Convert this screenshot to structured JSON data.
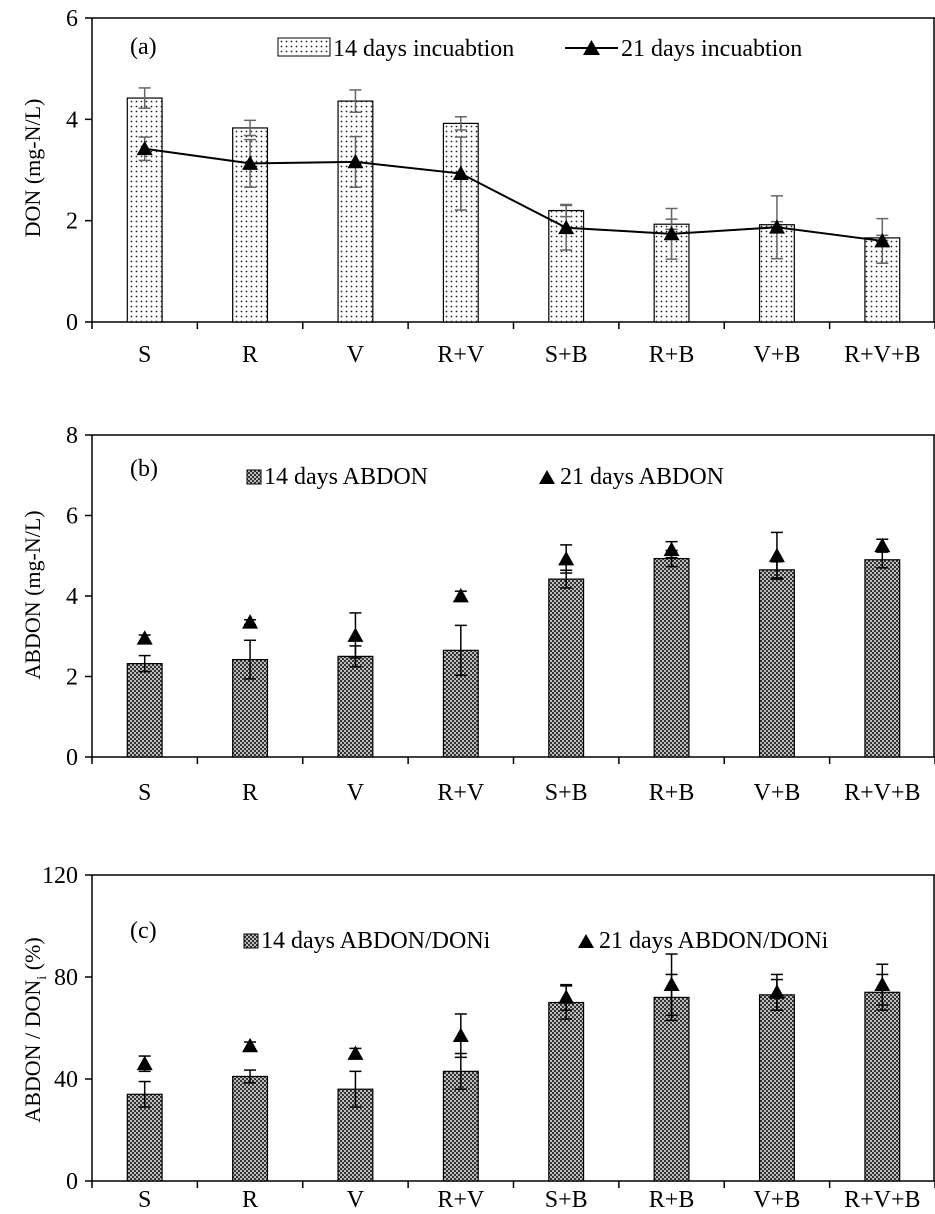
{
  "chart_data": [
    {
      "type": "bar",
      "panel_label": "(a)",
      "ylabel": "DON (mg-N/L)",
      "ylim": [
        0,
        6
      ],
      "yticks": [
        0,
        2,
        4,
        6
      ],
      "grid": false,
      "legend_position": "top",
      "categories": [
        "S",
        "R",
        "V",
        "R+V",
        "S+B",
        "R+B",
        "V+B",
        "R+V+B"
      ],
      "bar_pattern": "dots",
      "series": [
        {
          "name": "14 days incuabtion",
          "kind": "bar",
          "values": [
            4.42,
            3.83,
            4.36,
            3.92,
            2.2,
            1.93,
            1.92,
            1.66
          ],
          "errors": [
            0.2,
            0.15,
            0.22,
            0.13,
            0.12,
            0.1,
            0.06,
            0.05
          ]
        },
        {
          "name": "21 days incuabtion",
          "kind": "line",
          "values": [
            3.42,
            3.13,
            3.16,
            2.93,
            1.86,
            1.74,
            1.87,
            1.6
          ],
          "errors": [
            0.23,
            0.47,
            0.5,
            0.72,
            0.44,
            0.5,
            0.62,
            0.44
          ]
        }
      ]
    },
    {
      "type": "bar",
      "panel_label": "(b)",
      "ylabel": "ABDON (mg-N/L)",
      "ylim": [
        0,
        8
      ],
      "yticks": [
        0,
        2,
        4,
        6,
        8
      ],
      "grid": false,
      "legend_position": "top",
      "categories": [
        "S",
        "R",
        "V",
        "R+V",
        "S+B",
        "R+B",
        "V+B",
        "R+V+B"
      ],
      "bar_pattern": "checker",
      "series": [
        {
          "name": "14 days ABDON",
          "kind": "bar",
          "values": [
            2.32,
            2.42,
            2.5,
            2.65,
            4.42,
            4.93,
            4.65,
            4.9
          ],
          "errors": [
            0.2,
            0.48,
            0.26,
            0.62,
            0.22,
            0.2,
            0.2,
            0.2
          ]
        },
        {
          "name": "21 days ABDON",
          "kind": "marker",
          "values": [
            2.95,
            3.35,
            3.02,
            4.0,
            4.92,
            5.15,
            5.0,
            5.25
          ],
          "errors": [
            0.08,
            0.06,
            0.56,
            0.12,
            0.35,
            0.2,
            0.58,
            0.16
          ]
        }
      ]
    },
    {
      "type": "bar",
      "panel_label": "(c)",
      "ylabel": "ABDON / DON",
      "ylabel_subscript": "i",
      "ylabel_suffix": " (%)",
      "ylim": [
        0,
        120
      ],
      "yticks": [
        0,
        40,
        80,
        120
      ],
      "grid": false,
      "legend_position": "top",
      "categories": [
        "S",
        "R",
        "V",
        "R+V",
        "S+B",
        "R+B",
        "V+B",
        "R+V+B"
      ],
      "bar_pattern": "checker",
      "series": [
        {
          "name": "14 days ABDON/DONi",
          "kind": "bar",
          "values": [
            34,
            41,
            36,
            43,
            70,
            72,
            73,
            74
          ],
          "errors": [
            5,
            2.5,
            7,
            7,
            6.5,
            9,
            6,
            7
          ]
        },
        {
          "name": "21 days ABDON/DONi",
          "kind": "marker",
          "values": [
            46,
            53,
            50,
            57,
            72,
            77,
            74,
            77
          ],
          "errors": [
            3,
            1.5,
            2,
            8.5,
            5,
            12,
            7,
            8
          ]
        }
      ]
    }
  ]
}
